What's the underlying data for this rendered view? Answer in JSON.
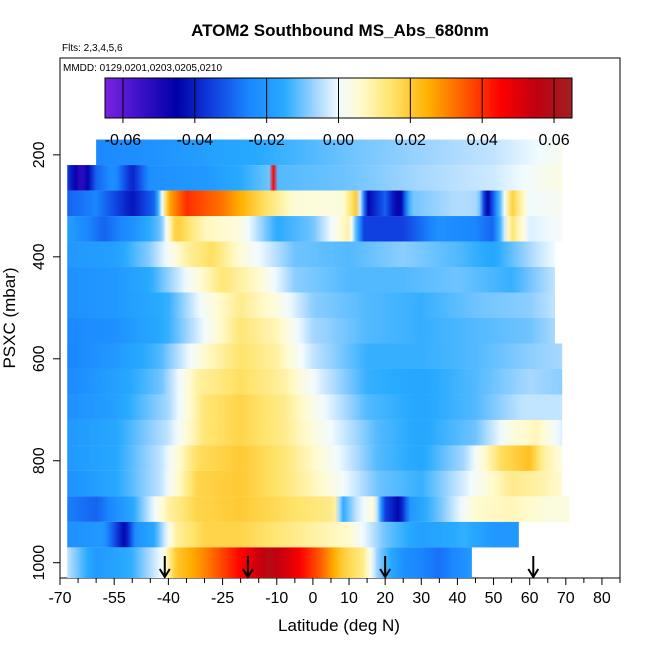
{
  "chart_data": {
    "type": "heatmap",
    "title": "ATOM2 Southbound MS_Abs_680nm",
    "flights_note": "Flts: 2,3,4,5,6",
    "dates_note": "MMDD: 0129,0201,0203,0205,0210",
    "xlabel": "Latitude (deg N)",
    "ylabel": "PSXC (mbar)",
    "xlim": [
      -70,
      85
    ],
    "ylim": [
      1030,
      10
    ],
    "x_ticks": [
      -70,
      -55,
      -40,
      -25,
      -10,
      0,
      10,
      20,
      30,
      40,
      50,
      60,
      70,
      80
    ],
    "x_minor_ticks": [
      -65,
      -60,
      -50,
      -45,
      -35,
      -30,
      -20,
      -15,
      -5,
      5,
      15,
      25,
      35,
      45,
      55,
      65,
      75,
      85
    ],
    "y_ticks": [
      200,
      400,
      600,
      800,
      1000
    ],
    "colorbar": {
      "ticks": [
        -0.06,
        -0.04,
        -0.02,
        0.0,
        0.02,
        0.04,
        0.06
      ],
      "tick_labels": [
        "-0.06",
        "-0.04",
        "-0.02",
        "0.00",
        "0.02",
        "0.04",
        "0.06"
      ],
      "vmin": -0.065,
      "vmax": 0.065,
      "stops": [
        {
          "v": -0.065,
          "color": "#7b22e0"
        },
        {
          "v": -0.055,
          "color": "#3a10c8"
        },
        {
          "v": -0.045,
          "color": "#0000a8"
        },
        {
          "v": -0.035,
          "color": "#1040e0"
        },
        {
          "v": -0.025,
          "color": "#1a86ff"
        },
        {
          "v": -0.015,
          "color": "#28aaff"
        },
        {
          "v": -0.006,
          "color": "#a8d8ff"
        },
        {
          "v": 0.0,
          "color": "#f2fbff"
        },
        {
          "v": 0.006,
          "color": "#fffbd0"
        },
        {
          "v": 0.015,
          "color": "#ffe36a"
        },
        {
          "v": 0.025,
          "color": "#ffb000"
        },
        {
          "v": 0.035,
          "color": "#ff5a00"
        },
        {
          "v": 0.045,
          "color": "#ff0000"
        },
        {
          "v": 0.055,
          "color": "#c00010"
        },
        {
          "v": 0.065,
          "color": "#a02020"
        }
      ]
    },
    "arrow_latitudes": [
      -41,
      -18,
      20,
      61
    ],
    "rows": [
      {
        "p_top": 170,
        "p_bot": 220,
        "lat_min": -60,
        "lat_max": 69,
        "knots": [
          [
            -60,
            -0.024
          ],
          [
            -45,
            -0.022
          ],
          [
            -30,
            -0.018
          ],
          [
            -10,
            -0.014
          ],
          [
            10,
            -0.01
          ],
          [
            30,
            -0.007
          ],
          [
            50,
            -0.004
          ],
          [
            69,
            0.002
          ]
        ]
      },
      {
        "p_top": 220,
        "p_bot": 270,
        "lat_min": -68,
        "lat_max": 69,
        "knots": [
          [
            -68,
            -0.035
          ],
          [
            -64,
            -0.055
          ],
          [
            -60,
            -0.03
          ],
          [
            -55,
            -0.022
          ],
          [
            -50,
            -0.04
          ],
          [
            -45,
            -0.022
          ],
          [
            -30,
            -0.02
          ],
          [
            -20,
            -0.015
          ],
          [
            -12,
            -0.01
          ],
          [
            -11,
            0.05
          ],
          [
            -10,
            -0.012
          ],
          [
            10,
            -0.01
          ],
          [
            30,
            -0.006
          ],
          [
            50,
            -0.003
          ],
          [
            69,
            0.004
          ]
        ]
      },
      {
        "p_top": 270,
        "p_bot": 320,
        "lat_min": -68,
        "lat_max": 69,
        "knots": [
          [
            -68,
            -0.03
          ],
          [
            -60,
            -0.025
          ],
          [
            -50,
            -0.042
          ],
          [
            -44,
            -0.03
          ],
          [
            -40,
            0.025
          ],
          [
            -35,
            0.04
          ],
          [
            -25,
            0.032
          ],
          [
            -15,
            0.018
          ],
          [
            -5,
            0.005
          ],
          [
            8,
            0.004
          ],
          [
            12,
            0.02
          ],
          [
            15,
            -0.045
          ],
          [
            20,
            -0.03
          ],
          [
            24,
            -0.05
          ],
          [
            27,
            -0.01
          ],
          [
            40,
            -0.005
          ],
          [
            46,
            -0.006
          ],
          [
            48,
            -0.05
          ],
          [
            52,
            -0.01
          ],
          [
            55,
            0.02
          ],
          [
            60,
            0.0
          ],
          [
            69,
            0.002
          ]
        ]
      },
      {
        "p_top": 320,
        "p_bot": 370,
        "lat_min": -68,
        "lat_max": 69,
        "knots": [
          [
            -68,
            -0.018
          ],
          [
            -58,
            -0.03
          ],
          [
            -50,
            -0.022
          ],
          [
            -42,
            -0.01
          ],
          [
            -38,
            0.02
          ],
          [
            -30,
            0.008
          ],
          [
            -20,
            0.004
          ],
          [
            -10,
            -0.015
          ],
          [
            0,
            -0.01
          ],
          [
            10,
            0.01
          ],
          [
            14,
            -0.035
          ],
          [
            25,
            -0.035
          ],
          [
            35,
            -0.022
          ],
          [
            45,
            -0.025
          ],
          [
            50,
            -0.03
          ],
          [
            55,
            0.015
          ],
          [
            60,
            -0.002
          ],
          [
            69,
            0.001
          ]
        ]
      },
      {
        "p_top": 370,
        "p_bot": 420,
        "lat_min": -68,
        "lat_max": 67,
        "knots": [
          [
            -68,
            -0.02
          ],
          [
            -55,
            -0.018
          ],
          [
            -45,
            -0.008
          ],
          [
            -35,
            0.01
          ],
          [
            -28,
            0.016
          ],
          [
            -20,
            0.005
          ],
          [
            -5,
            -0.01
          ],
          [
            10,
            -0.012
          ],
          [
            25,
            -0.008
          ],
          [
            40,
            -0.012
          ],
          [
            50,
            -0.016
          ],
          [
            56,
            -0.01
          ],
          [
            62,
            -0.004
          ],
          [
            67,
            0.0
          ]
        ]
      },
      {
        "p_top": 420,
        "p_bot": 470,
        "lat_min": -68,
        "lat_max": 67,
        "knots": [
          [
            -68,
            -0.022
          ],
          [
            -55,
            -0.02
          ],
          [
            -45,
            -0.015
          ],
          [
            -35,
            0.0
          ],
          [
            -25,
            0.014
          ],
          [
            -15,
            0.006
          ],
          [
            -5,
            -0.008
          ],
          [
            10,
            -0.012
          ],
          [
            25,
            -0.012
          ],
          [
            40,
            -0.01
          ],
          [
            55,
            -0.014
          ],
          [
            67,
            -0.004
          ]
        ]
      },
      {
        "p_top": 470,
        "p_bot": 520,
        "lat_min": -68,
        "lat_max": 67,
        "knots": [
          [
            -68,
            -0.022
          ],
          [
            -55,
            -0.02
          ],
          [
            -40,
            -0.014
          ],
          [
            -30,
            0.002
          ],
          [
            -20,
            0.012
          ],
          [
            -10,
            0.004
          ],
          [
            0,
            -0.008
          ],
          [
            15,
            -0.012
          ],
          [
            30,
            -0.014
          ],
          [
            45,
            -0.01
          ],
          [
            60,
            -0.008
          ],
          [
            67,
            -0.004
          ]
        ]
      },
      {
        "p_top": 520,
        "p_bot": 570,
        "lat_min": -68,
        "lat_max": 67,
        "knots": [
          [
            -68,
            -0.024
          ],
          [
            -55,
            -0.022
          ],
          [
            -40,
            -0.014
          ],
          [
            -30,
            0.0
          ],
          [
            -20,
            0.014
          ],
          [
            -10,
            0.008
          ],
          [
            0,
            -0.006
          ],
          [
            15,
            -0.012
          ],
          [
            30,
            -0.014
          ],
          [
            45,
            -0.012
          ],
          [
            60,
            -0.01
          ],
          [
            67,
            -0.006
          ]
        ]
      },
      {
        "p_top": 570,
        "p_bot": 620,
        "lat_min": -68,
        "lat_max": 69,
        "knots": [
          [
            -68,
            -0.025
          ],
          [
            -55,
            -0.02
          ],
          [
            -42,
            -0.012
          ],
          [
            -30,
            0.006
          ],
          [
            -20,
            0.015
          ],
          [
            -10,
            0.01
          ],
          [
            0,
            -0.004
          ],
          [
            15,
            -0.014
          ],
          [
            30,
            -0.014
          ],
          [
            45,
            -0.012
          ],
          [
            60,
            -0.008
          ],
          [
            69,
            -0.006
          ]
        ]
      },
      {
        "p_top": 620,
        "p_bot": 670,
        "lat_min": -68,
        "lat_max": 69,
        "knots": [
          [
            -68,
            -0.024
          ],
          [
            -55,
            -0.018
          ],
          [
            -42,
            -0.01
          ],
          [
            -32,
            0.01
          ],
          [
            -20,
            0.016
          ],
          [
            -8,
            0.01
          ],
          [
            2,
            -0.002
          ],
          [
            15,
            -0.014
          ],
          [
            30,
            -0.016
          ],
          [
            45,
            -0.012
          ],
          [
            60,
            -0.006
          ],
          [
            69,
            -0.008
          ]
        ]
      },
      {
        "p_top": 670,
        "p_bot": 720,
        "lat_min": -68,
        "lat_max": 69,
        "knots": [
          [
            -68,
            -0.022
          ],
          [
            -55,
            -0.018
          ],
          [
            -40,
            -0.006
          ],
          [
            -30,
            0.014
          ],
          [
            -20,
            0.018
          ],
          [
            -8,
            0.012
          ],
          [
            3,
            0.0
          ],
          [
            15,
            -0.012
          ],
          [
            30,
            -0.016
          ],
          [
            45,
            -0.012
          ],
          [
            58,
            -0.004
          ],
          [
            69,
            -0.004
          ]
        ]
      },
      {
        "p_top": 720,
        "p_bot": 770,
        "lat_min": -68,
        "lat_max": 69,
        "knots": [
          [
            -68,
            -0.02
          ],
          [
            -55,
            -0.016
          ],
          [
            -40,
            -0.004
          ],
          [
            -30,
            0.014
          ],
          [
            -20,
            0.018
          ],
          [
            -8,
            0.012
          ],
          [
            5,
            0.0
          ],
          [
            18,
            -0.012
          ],
          [
            30,
            -0.016
          ],
          [
            45,
            -0.01
          ],
          [
            55,
            0.004
          ],
          [
            62,
            0.008
          ],
          [
            69,
            -0.002
          ]
        ]
      },
      {
        "p_top": 770,
        "p_bot": 820,
        "lat_min": -68,
        "lat_max": 69,
        "knots": [
          [
            -68,
            -0.02
          ],
          [
            -55,
            -0.016
          ],
          [
            -42,
            -0.004
          ],
          [
            -32,
            0.016
          ],
          [
            -20,
            0.02
          ],
          [
            -8,
            0.014
          ],
          [
            5,
            0.002
          ],
          [
            18,
            -0.012
          ],
          [
            30,
            -0.016
          ],
          [
            42,
            -0.006
          ],
          [
            52,
            0.016
          ],
          [
            60,
            0.022
          ],
          [
            64,
            0.01
          ],
          [
            69,
            0.004
          ]
        ]
      },
      {
        "p_top": 820,
        "p_bot": 870,
        "lat_min": -68,
        "lat_max": 69,
        "knots": [
          [
            -68,
            -0.022
          ],
          [
            -55,
            -0.016
          ],
          [
            -42,
            -0.004
          ],
          [
            -32,
            0.018
          ],
          [
            -20,
            0.02
          ],
          [
            -8,
            0.014
          ],
          [
            5,
            0.004
          ],
          [
            18,
            -0.01
          ],
          [
            30,
            -0.014
          ],
          [
            42,
            -0.002
          ],
          [
            55,
            0.012
          ],
          [
            62,
            0.01
          ],
          [
            69,
            0.006
          ]
        ]
      },
      {
        "p_top": 870,
        "p_bot": 920,
        "lat_min": -68,
        "lat_max": 71,
        "knots": [
          [
            -68,
            -0.026
          ],
          [
            -60,
            -0.03
          ],
          [
            -50,
            -0.016
          ],
          [
            -40,
            0.01
          ],
          [
            -32,
            0.018
          ],
          [
            -20,
            0.02
          ],
          [
            -8,
            0.016
          ],
          [
            6,
            0.012
          ],
          [
            8,
            -0.016
          ],
          [
            12,
            -0.004
          ],
          [
            17,
            0.006
          ],
          [
            20,
            -0.035
          ],
          [
            24,
            -0.045
          ],
          [
            27,
            -0.02
          ],
          [
            35,
            -0.01
          ],
          [
            45,
            0.006
          ],
          [
            55,
            0.008
          ],
          [
            65,
            0.004
          ],
          [
            71,
            0.004
          ]
        ]
      },
      {
        "p_top": 920,
        "p_bot": 970,
        "lat_min": -68,
        "lat_max": 57,
        "knots": [
          [
            -68,
            -0.022
          ],
          [
            -58,
            -0.02
          ],
          [
            -52,
            -0.045
          ],
          [
            -49,
            -0.022
          ],
          [
            -44,
            -0.016
          ],
          [
            -38,
            0.01
          ],
          [
            -30,
            0.018
          ],
          [
            -20,
            0.018
          ],
          [
            -5,
            0.012
          ],
          [
            10,
            0.006
          ],
          [
            20,
            -0.01
          ],
          [
            30,
            -0.018
          ],
          [
            42,
            -0.014
          ],
          [
            50,
            -0.02
          ],
          [
            57,
            -0.02
          ]
        ]
      },
      {
        "p_top": 970,
        "p_bot": 1030,
        "lat_min": -68,
        "lat_max": 44,
        "knots": [
          [
            -68,
            -0.004
          ],
          [
            -60,
            -0.02
          ],
          [
            -50,
            -0.014
          ],
          [
            -42,
            0.0
          ],
          [
            -38,
            0.02
          ],
          [
            -30,
            0.03
          ],
          [
            -20,
            0.045
          ],
          [
            -12,
            0.058
          ],
          [
            -5,
            0.048
          ],
          [
            2,
            0.035
          ],
          [
            8,
            0.02
          ],
          [
            14,
            0.012
          ],
          [
            18,
            -0.008
          ],
          [
            25,
            -0.022
          ],
          [
            35,
            -0.028
          ],
          [
            44,
            -0.02
          ]
        ]
      }
    ]
  }
}
